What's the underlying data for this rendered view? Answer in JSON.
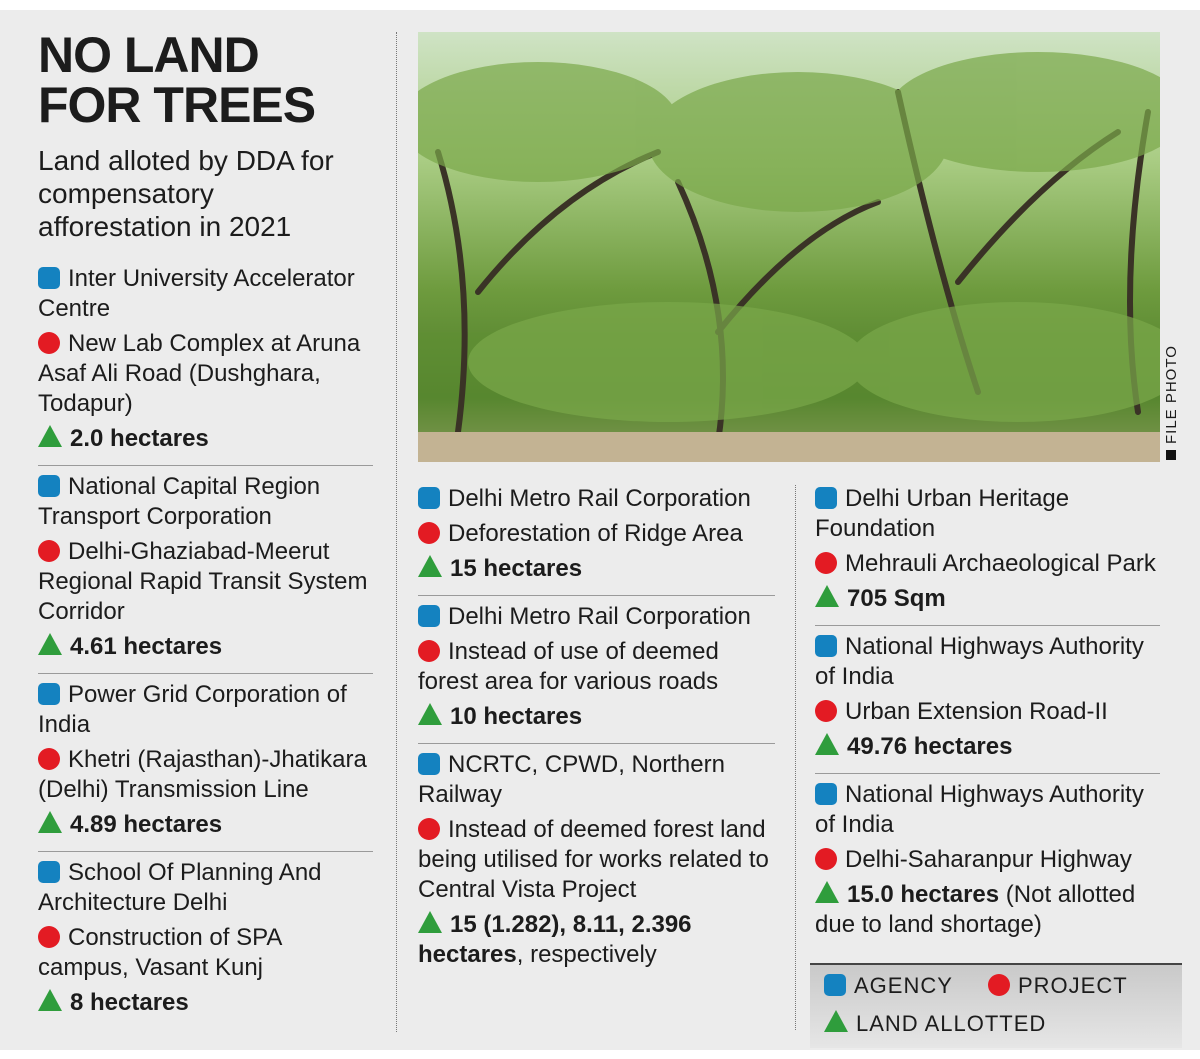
{
  "header": {
    "title_line1": "NO LAND",
    "title_line2": "FOR TREES",
    "subtitle": "Land alloted by DDA for compensatory afforestation in 2021"
  },
  "columns": [
    [
      {
        "agency": "Inter University Accelerator Centre",
        "project": "New Lab Complex at Aruna Asaf Ali Road (Dushghara, Todapur)",
        "land": "2.0 hectares",
        "land_note": ""
      },
      {
        "agency": "National Capital Region Transport Corporation",
        "project": "Delhi-Ghaziabad-Meerut Regional Rapid Transit System Corridor",
        "land": "4.61 hectares",
        "land_note": ""
      },
      {
        "agency": "Power Grid Corporation of India",
        "project": "Khetri (Rajasthan)-Jhatikara (Delhi) Transmission Line",
        "land": "4.89 hectares",
        "land_note": ""
      },
      {
        "agency": "School Of Planning And Architecture Delhi",
        "project": "Construction of SPA campus, Vasant Kunj",
        "land": "8 hectares",
        "land_note": ""
      }
    ],
    [
      {
        "agency": "Delhi Metro Rail Corporation",
        "project": "Deforestation of Ridge Area",
        "land": "15 hectares",
        "land_note": ""
      },
      {
        "agency": "Delhi Metro Rail Corporation",
        "project": "Instead of use of deemed forest area for various roads",
        "land": "10 hectares",
        "land_note": ""
      },
      {
        "agency": "NCRTC, CPWD, Northern Railway",
        "project": "Instead of deemed forest land being utilised for works related to Central Vista Project",
        "land": "15 (1.282), 8.11, 2.396 hectares",
        "land_note": ", respectively"
      }
    ],
    [
      {
        "agency": "Delhi Urban Heritage Foundation",
        "project": "Mehrauli Archaeological Park",
        "land": "705 Sqm",
        "land_note": ""
      },
      {
        "agency": "National Highways Authority of India",
        "project": "Urban Extension Road-II",
        "land": "49.76 hectares",
        "land_note": ""
      },
      {
        "agency": "National Highways Authority of India",
        "project": "Delhi-Saharanpur Highway",
        "land": "15.0 hectares",
        "land_note": " (Not allotted due to land shortage)"
      }
    ]
  ],
  "photo": {
    "credit": "FILE PHOTO"
  },
  "legend": {
    "agency": "AGENCY",
    "project": "PROJECT",
    "land": "LAND ALLOTTED"
  },
  "colors": {
    "agency": "#1482c0",
    "project": "#e31b23",
    "land": "#2f9d3c",
    "background": "#ececec"
  }
}
